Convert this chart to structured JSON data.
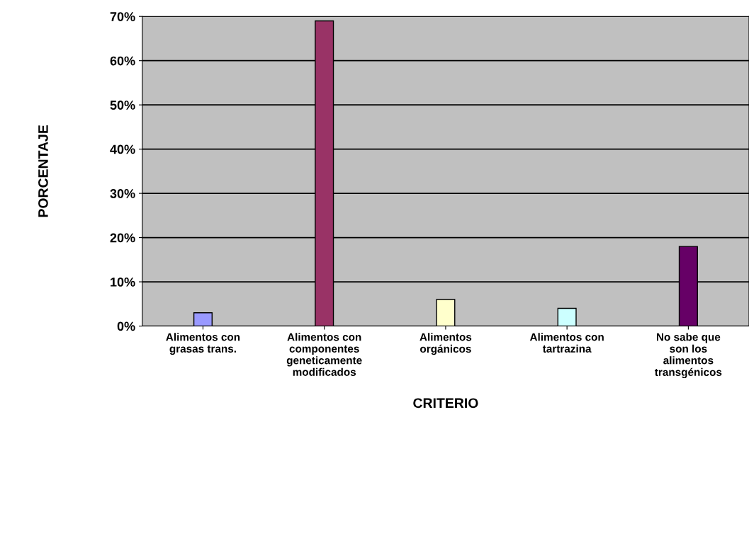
{
  "chart_data": {
    "type": "bar",
    "xlabel": "CRITERIO",
    "ylabel": "PORCENTAJE",
    "categories": [
      "Alimentos con\ngrasas trans.",
      "Alimentos con\ncomponentes\ngeneticamente\nmodificados",
      "Alimentos\norgánicos",
      "Alimentos con\ntartrazina",
      "No sabe que\nson los\nalimentos\ntransgénicos"
    ],
    "values": [
      0.03,
      0.69,
      0.06,
      0.04,
      0.18
    ],
    "colors": [
      "#9999ff",
      "#993366",
      "#ffffcc",
      "#ccffff",
      "#660066"
    ],
    "ylim": [
      0,
      0.7
    ],
    "yticks": [
      {
        "value": 0,
        "label": "0%"
      },
      {
        "value": 0.1,
        "label": "10%"
      },
      {
        "value": 0.2,
        "label": "20%"
      },
      {
        "value": 0.3,
        "label": "30%"
      },
      {
        "value": 0.4,
        "label": "40%"
      },
      {
        "value": 0.5,
        "label": "50%"
      },
      {
        "value": 0.6,
        "label": "60%"
      },
      {
        "value": 0.7,
        "label": "70%"
      }
    ],
    "grid": "y"
  }
}
